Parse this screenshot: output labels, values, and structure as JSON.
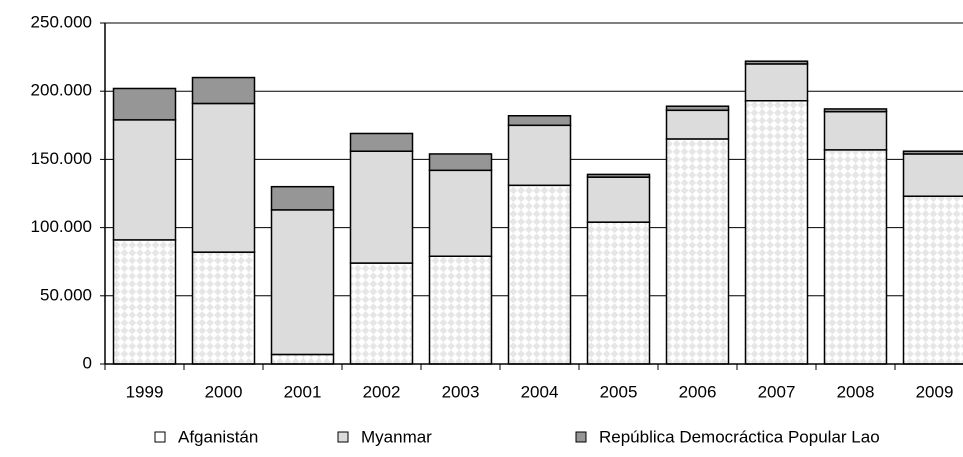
{
  "chart_data": {
    "type": "stacked_bar",
    "categories": [
      "1999",
      "2000",
      "2001",
      "2002",
      "2003",
      "2004",
      "2005",
      "2006",
      "2007",
      "2008",
      "2009"
    ],
    "series": [
      {
        "name": "Afganistán",
        "color": "#e6e6e6",
        "values": [
          91000,
          82000,
          7000,
          74000,
          79000,
          131000,
          104000,
          165000,
          193000,
          157000,
          123000
        ]
      },
      {
        "name": "Myanmar",
        "color": "#dcdcdc",
        "values": [
          88000,
          109000,
          106000,
          82000,
          63000,
          44000,
          33000,
          21000,
          27000,
          28000,
          31000
        ]
      },
      {
        "name": "República Democráctica Popular Lao",
        "color": "#969696",
        "values": [
          23000,
          19000,
          17000,
          13000,
          12000,
          7000,
          2000,
          3000,
          2000,
          2000,
          2000
        ]
      }
    ],
    "ylim": [
      0,
      250000
    ],
    "yticks": [
      0,
      {
        "value": 50000,
        "label": "50.000"
      },
      {
        "value": 100000,
        "label": "100.000"
      },
      {
        "value": 150000,
        "label": "150.000"
      },
      {
        "value": 200000,
        "label": "200.000"
      },
      {
        "value": 250000,
        "label": "250.000"
      }
    ],
    "grid": true,
    "legend": "bottom"
  }
}
